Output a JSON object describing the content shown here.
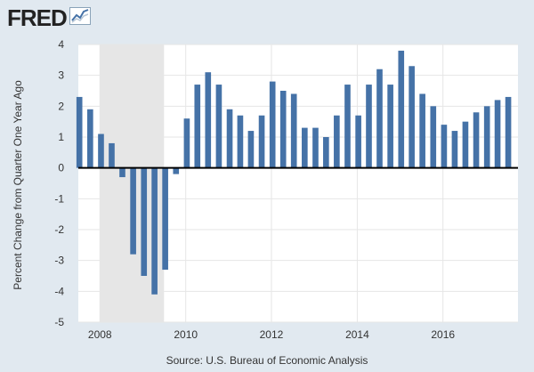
{
  "brand": {
    "text": "FRED",
    "icon": "trend-line-icon"
  },
  "source": "Source: U.S. Bureau of Economic Analysis",
  "chart_data": {
    "type": "bar",
    "title": "",
    "ylabel": "Percent Change from Quarter One Year Ago",
    "xlabel": "",
    "ylim": [
      -5,
      4
    ],
    "yticks": [
      4,
      3,
      2,
      1,
      0,
      -1,
      -2,
      -3,
      -4,
      -5
    ],
    "xlim": [
      "2007-07-01",
      "2017-10-01"
    ],
    "xticks": [
      "2008",
      "2010",
      "2012",
      "2014",
      "2016"
    ],
    "grid": true,
    "bar_color": "#4572a7",
    "recession_shading": [
      {
        "start": "2008-01-01",
        "end": "2009-06-30",
        "color": "#e6e6e6"
      }
    ],
    "x": [
      "2007-07-01",
      "2007-10-01",
      "2008-01-01",
      "2008-04-01",
      "2008-07-01",
      "2008-10-01",
      "2009-01-01",
      "2009-04-01",
      "2009-07-01",
      "2009-10-01",
      "2010-01-01",
      "2010-04-01",
      "2010-07-01",
      "2010-10-01",
      "2011-01-01",
      "2011-04-01",
      "2011-07-01",
      "2011-10-01",
      "2012-01-01",
      "2012-04-01",
      "2012-07-01",
      "2012-10-01",
      "2013-01-01",
      "2013-04-01",
      "2013-07-01",
      "2013-10-01",
      "2014-01-01",
      "2014-04-01",
      "2014-07-01",
      "2014-10-01",
      "2015-01-01",
      "2015-04-01",
      "2015-07-01",
      "2015-10-01",
      "2016-01-01",
      "2016-04-01",
      "2016-07-01",
      "2016-10-01",
      "2017-01-01",
      "2017-04-01",
      "2017-07-01"
    ],
    "values": [
      2.3,
      1.9,
      1.1,
      0.8,
      -0.3,
      -2.8,
      -3.5,
      -4.1,
      -3.3,
      -0.2,
      1.6,
      2.7,
      3.1,
      2.7,
      1.9,
      1.7,
      1.2,
      1.7,
      2.8,
      2.5,
      2.4,
      1.3,
      1.3,
      1.0,
      1.7,
      2.7,
      1.7,
      2.7,
      3.2,
      2.7,
      3.8,
      3.3,
      2.4,
      2.0,
      1.4,
      1.2,
      1.5,
      1.8,
      2.0,
      2.2,
      2.3
    ]
  }
}
